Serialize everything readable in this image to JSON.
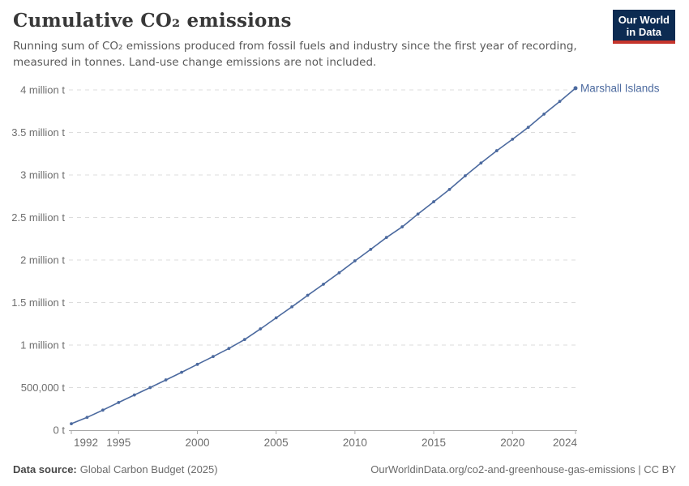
{
  "header": {
    "title": "Cumulative CO₂ emissions",
    "subtitle_lines": [
      "Running sum of CO₂ emissions produced from fossil fuels and industry since the first year of recording,",
      "measured in tonnes. Land-use change emissions are not included."
    ]
  },
  "logo": {
    "line1": "Our World",
    "line2": "in Data"
  },
  "footer": {
    "source_label": "Data source:",
    "source_value": "Global Carbon Budget (2025)",
    "right": "OurWorldinData.org/co2-and-greenhouse-gas-emissions | CC BY"
  },
  "colors": {
    "line": "#4c6a9f",
    "grid": "#dcdcdc",
    "axis": "#a9a9a9",
    "tick_label": "#6e6e6e",
    "logo_bg": "#0c2b52",
    "logo_accent": "#c5352c"
  },
  "chart_data": {
    "type": "line",
    "title": "Cumulative CO₂ emissions",
    "xlabel": "",
    "ylabel": "",
    "unit": "t",
    "xlim": [
      1992,
      2024
    ],
    "ylim": [
      0,
      4000000
    ],
    "grid": "dashed-horizontal",
    "legend_position": "end-of-line-label",
    "x": [
      1992,
      1993,
      1994,
      1995,
      1996,
      1997,
      1998,
      1999,
      2000,
      2001,
      2002,
      2003,
      2004,
      2005,
      2006,
      2007,
      2008,
      2009,
      2010,
      2011,
      2012,
      2013,
      2014,
      2015,
      2016,
      2017,
      2018,
      2019,
      2020,
      2021,
      2022,
      2023,
      2024
    ],
    "series": [
      {
        "name": "Marshall Islands",
        "color": "#4c6a9f",
        "values": [
          75000,
          150000,
          235000,
          325000,
          413000,
          500000,
          590000,
          680000,
          773000,
          865000,
          960000,
          1065000,
          1190000,
          1320000,
          1450000,
          1585000,
          1715000,
          1850000,
          1990000,
          2125000,
          2265000,
          2390000,
          2540000,
          2685000,
          2830000,
          2990000,
          3140000,
          3285000,
          3420000,
          3560000,
          3715000,
          3865000,
          4020000
        ]
      }
    ],
    "yticks": [
      {
        "value": 0,
        "label": "0 t"
      },
      {
        "value": 500000,
        "label": "500,000 t"
      },
      {
        "value": 1000000,
        "label": "1 million t"
      },
      {
        "value": 1500000,
        "label": "1.5 million t"
      },
      {
        "value": 2000000,
        "label": "2 million t"
      },
      {
        "value": 2500000,
        "label": "2.5 million t"
      },
      {
        "value": 3000000,
        "label": "3 million t"
      },
      {
        "value": 3500000,
        "label": "3.5 million t"
      },
      {
        "value": 4000000,
        "label": "4 million t"
      }
    ],
    "xticks": [
      {
        "value": 1992,
        "label": "1992"
      },
      {
        "value": 1995,
        "label": "1995"
      },
      {
        "value": 2000,
        "label": "2000"
      },
      {
        "value": 2005,
        "label": "2005"
      },
      {
        "value": 2010,
        "label": "2010"
      },
      {
        "value": 2015,
        "label": "2015"
      },
      {
        "value": 2020,
        "label": "2020"
      },
      {
        "value": 2024,
        "label": "2024"
      }
    ]
  }
}
